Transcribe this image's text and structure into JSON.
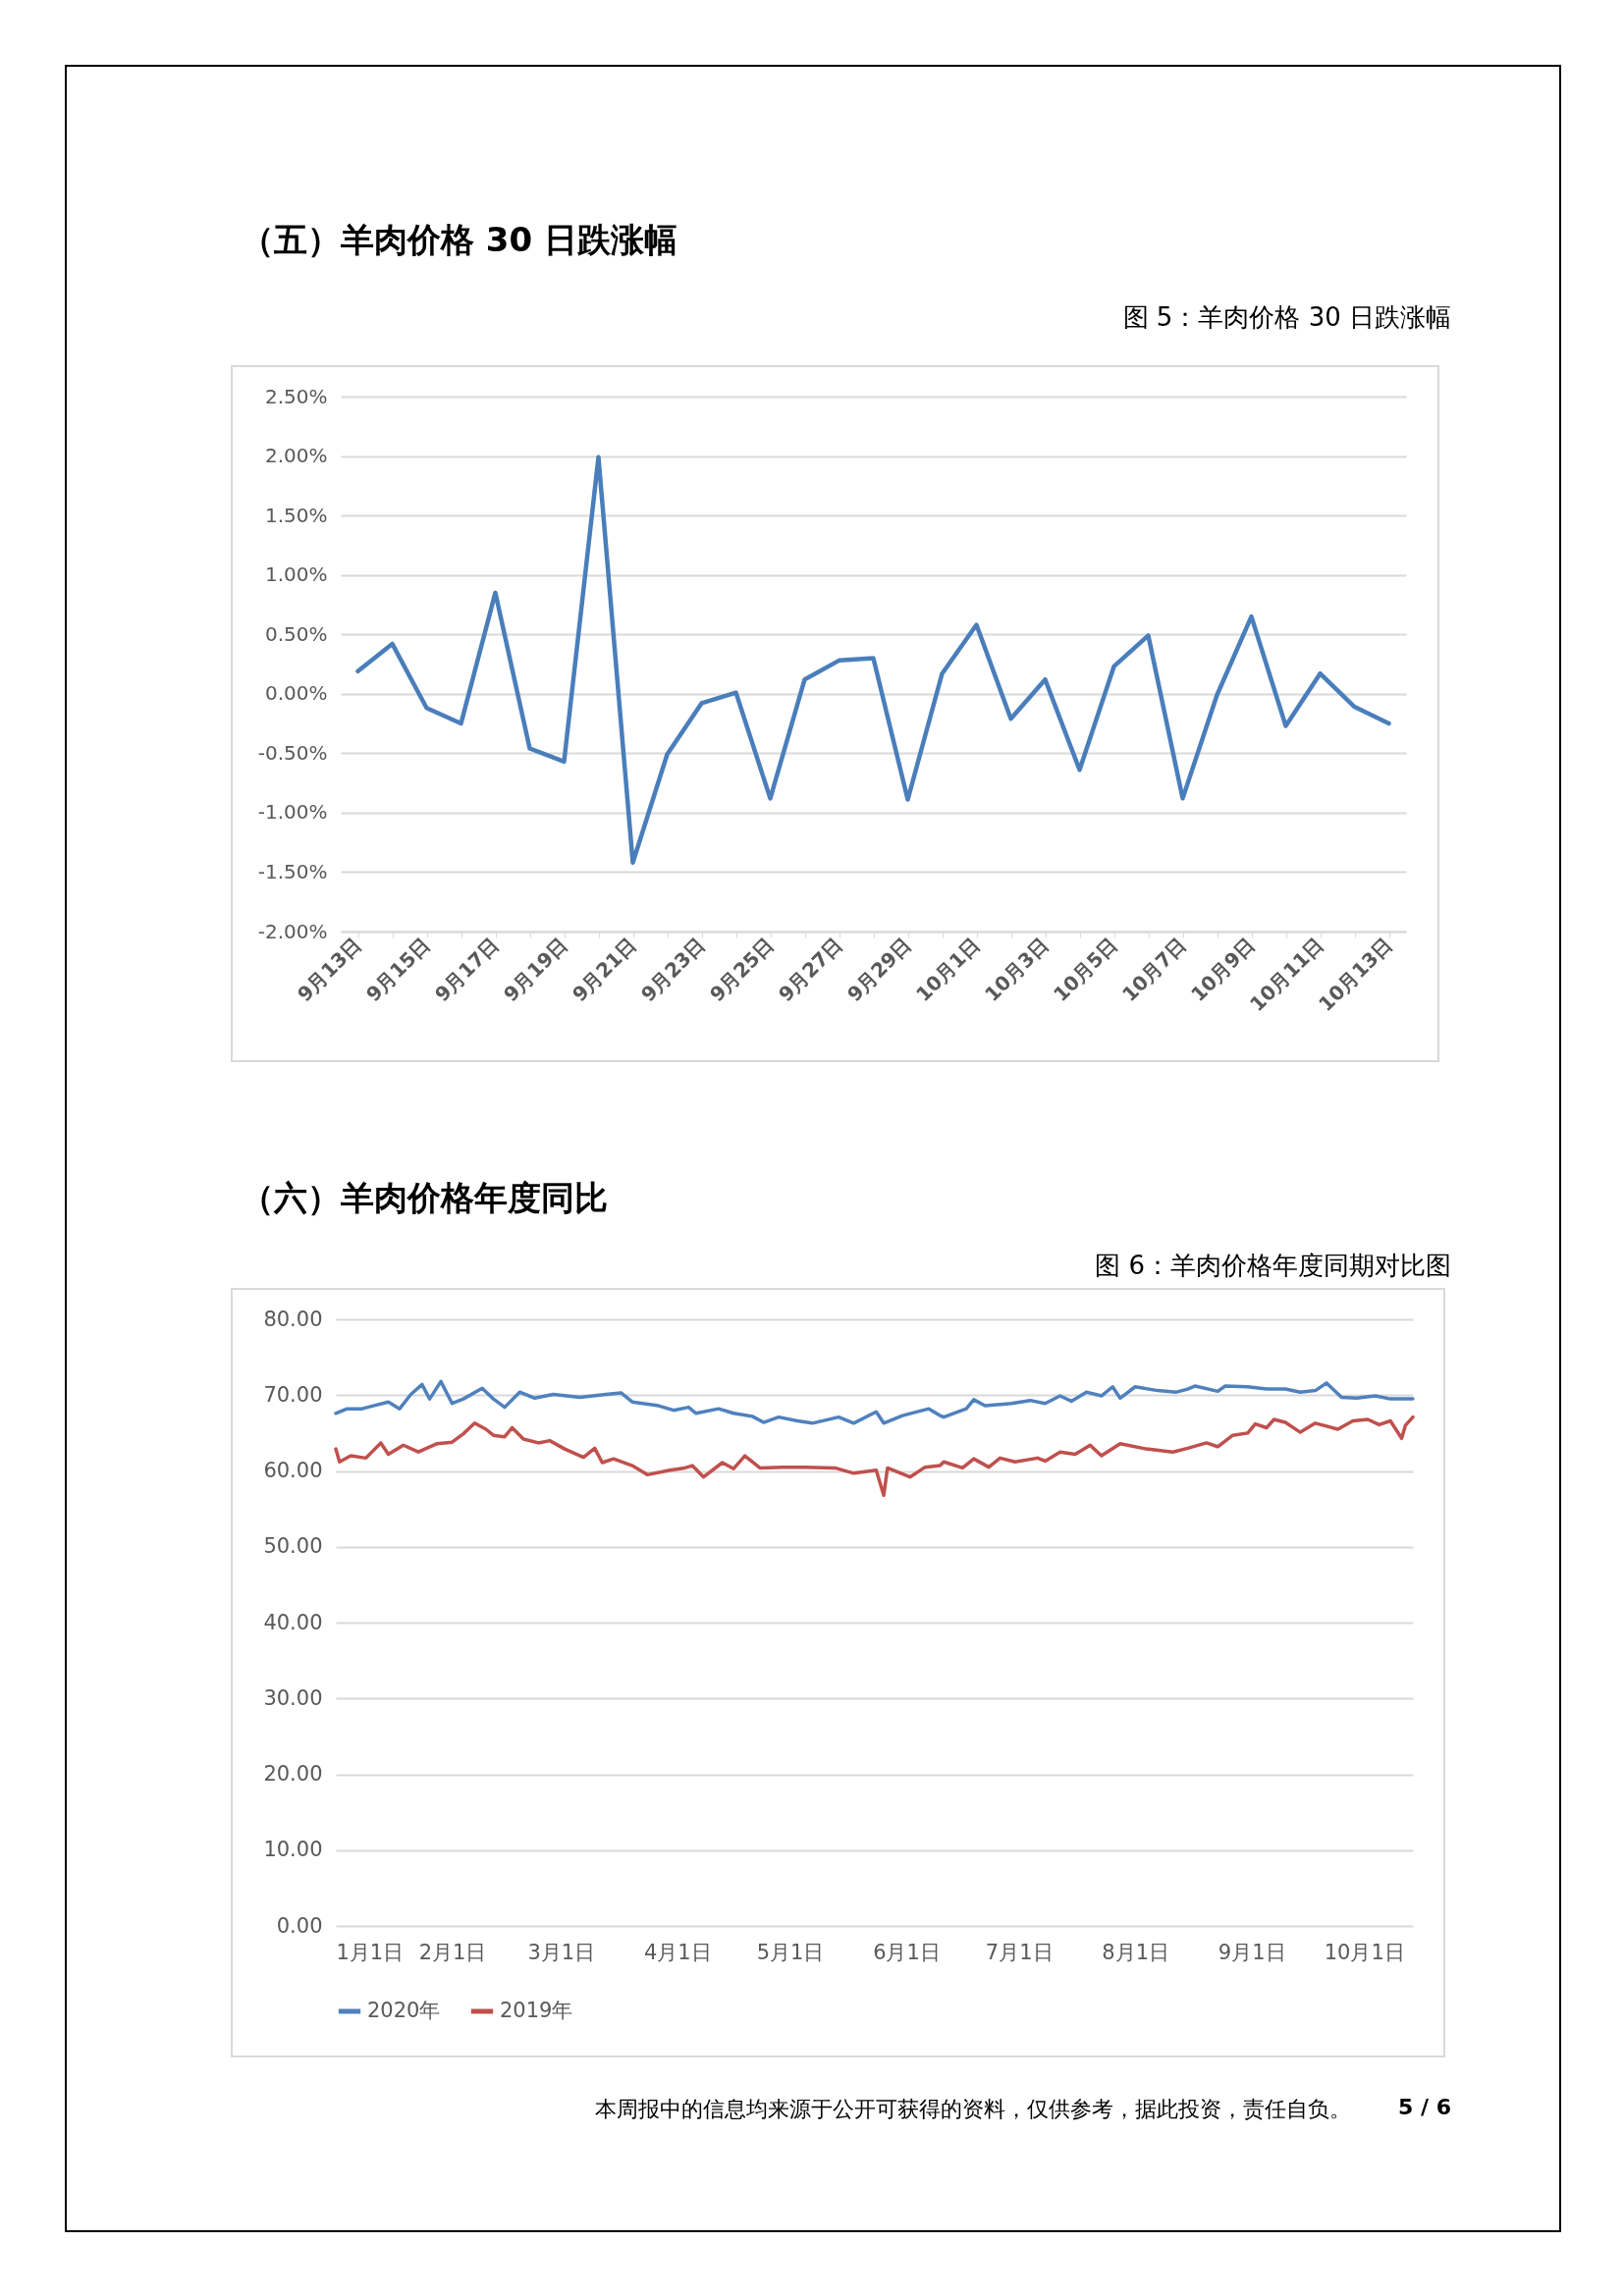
{
  "chart_data": [
    {
      "type": "line",
      "title": "（五）羊肉价格 30 日跌涨幅",
      "subtitle": "图 5：羊肉价格 30 日跌涨幅",
      "categories": [
        "9月13日",
        null,
        "9月15日",
        null,
        "9月17日",
        null,
        "9月19日",
        null,
        "9月21日",
        null,
        "9月23日",
        null,
        "9月25日",
        null,
        "9月27日",
        null,
        "9月29日",
        null,
        "10月1日",
        null,
        "10月3日",
        null,
        "10月5日",
        null,
        "10月7日",
        null,
        "10月9日",
        null,
        "10月11日",
        null,
        "10月13日"
      ],
      "values": [
        0.19,
        0.42,
        -0.12,
        -0.25,
        0.85,
        -0.46,
        -0.57,
        1.99,
        -1.42,
        -0.51,
        -0.08,
        0.01,
        -0.88,
        0.12,
        0.28,
        0.3,
        -0.89,
        0.17,
        0.58,
        -0.21,
        0.12,
        -0.64,
        0.23,
        0.49,
        -0.88,
        -0.01,
        0.65,
        -0.27,
        0.17,
        -0.11,
        -0.25
      ],
      "color": "#4a7ebb",
      "ylim": [
        -2,
        2.5
      ],
      "yticks": [
        {
          "value": -2,
          "label": "-2.00%"
        },
        {
          "value": -1.5,
          "label": "-1.50%"
        },
        {
          "value": -1,
          "label": "-1.00%"
        },
        {
          "value": -0.5,
          "label": "-0.50%"
        },
        {
          "value": 0,
          "label": "0.00%"
        },
        {
          "value": 0.5,
          "label": "0.50%"
        },
        {
          "value": 1,
          "label": "1.00%"
        },
        {
          "value": 1.5,
          "label": "1.50%"
        },
        {
          "value": 2,
          "label": "2.00%"
        },
        {
          "value": 2.5,
          "label": "2.50%"
        }
      ],
      "grid": "y"
    },
    {
      "type": "line",
      "title": "（六）羊肉价格年度同比",
      "subtitle": "图 6：羊肉价格年度同期对比图",
      "xlim": [
        "--01-01",
        "--10-14"
      ],
      "xticks": [
        {
          "value": "--01-01",
          "label": "1月1日"
        },
        {
          "value": "--02-01",
          "label": "2月1日"
        },
        {
          "value": "--03-01",
          "label": "3月1日"
        },
        {
          "value": "--04-01",
          "label": "4月1日"
        },
        {
          "value": "--05-01",
          "label": "5月1日"
        },
        {
          "value": "--06-01",
          "label": "6月1日"
        },
        {
          "value": "--07-01",
          "label": "7月1日"
        },
        {
          "value": "--08-01",
          "label": "8月1日"
        },
        {
          "value": "--09-01",
          "label": "9月1日"
        },
        {
          "value": "--10-01",
          "label": "10月1日"
        }
      ],
      "ylim": [
        0,
        80
      ],
      "yticks": [
        {
          "value": 0,
          "label": "0.00"
        },
        {
          "value": 10,
          "label": "10.00"
        },
        {
          "value": 20,
          "label": "20.00"
        },
        {
          "value": 30,
          "label": "30.00"
        },
        {
          "value": 40,
          "label": "40.00"
        },
        {
          "value": 50,
          "label": "50.00"
        },
        {
          "value": 60,
          "label": "60.00"
        },
        {
          "value": 70,
          "label": "70.00"
        },
        {
          "value": 80,
          "label": "80.00"
        }
      ],
      "series": [
        {
          "name": "2020年",
          "color": "#4f81bd",
          "x": [
            "--01-01",
            "--01-04",
            "--01-08",
            "--01-11",
            "--01-15",
            "--01-18",
            "--01-21",
            "--01-24",
            "--01-26",
            "--01-29",
            "--02-01",
            "--02-04",
            "--02-09",
            "--02-12",
            "--02-15",
            "--02-19",
            "--02-23",
            "--02-28",
            "--03-06",
            "--03-13",
            "--03-17",
            "--03-20",
            "--03-27",
            "--03-31",
            "--04-04",
            "--04-06",
            "--04-12",
            "--04-16",
            "--04-21",
            "--04-24",
            "--04-28",
            "--05-03",
            "--05-07",
            "--05-14",
            "--05-18",
            "--05-24",
            "--05-26",
            "--05-31",
            "--06-07",
            "--06-10",
            "--06-11",
            "--06-17",
            "--06-19",
            "--06-22",
            "--06-29",
            "--07-04",
            "--07-08",
            "--07-12",
            "--07-15",
            "--07-19",
            "--07-23",
            "--07-26",
            "--07-28",
            "--08-01",
            "--08-07",
            "--08-12",
            "--08-15",
            "--08-17",
            "--08-23",
            "--08-25",
            "--08-31",
            "--09-05",
            "--09-10",
            "--09-14",
            "--09-18",
            "--09-21",
            "--09-25",
            "--09-29",
            "--10-04",
            "--10-08",
            "--10-14"
          ],
          "values": [
            67.6,
            68.2,
            68.2,
            68.6,
            69.1,
            68.2,
            70.1,
            71.4,
            69.5,
            71.8,
            68.9,
            69.5,
            70.9,
            69.5,
            68.4,
            70.4,
            69.6,
            70.1,
            69.7,
            70.1,
            70.3,
            69.1,
            68.6,
            68.0,
            68.4,
            67.6,
            68.2,
            67.6,
            67.2,
            66.4,
            67.1,
            66.6,
            66.3,
            67.1,
            66.3,
            67.8,
            66.3,
            67.3,
            68.2,
            67.3,
            67.1,
            68.2,
            69.4,
            68.6,
            68.9,
            69.3,
            68.9,
            69.9,
            69.2,
            70.4,
            69.9,
            71.1,
            69.6,
            71.1,
            70.6,
            70.4,
            70.8,
            71.2,
            70.5,
            71.2,
            71.1,
            70.8,
            70.8,
            70.4,
            70.6,
            71.6,
            69.7,
            69.6,
            69.9,
            69.5,
            69.5
          ]
        },
        {
          "name": "2019年",
          "color": "#c0504d",
          "x": [
            "--01-01",
            "--01-02",
            "--01-05",
            "--01-09",
            "--01-13",
            "--01-15",
            "--01-19",
            "--01-23",
            "--01-28",
            "--02-01",
            "--02-04",
            "--02-07",
            "--02-10",
            "--02-12",
            "--02-15",
            "--02-17",
            "--02-20",
            "--02-24",
            "--02-27",
            "--03-02",
            "--03-07",
            "--03-10",
            "--03-12",
            "--03-15",
            "--03-20",
            "--03-24",
            "--03-30",
            "--04-03",
            "--04-05",
            "--04-08",
            "--04-13",
            "--04-16",
            "--04-19",
            "--04-23",
            "--04-29",
            "--05-05",
            "--05-13",
            "--05-18",
            "--05-24",
            "--05-26",
            "--05-27",
            "--06-02",
            "--06-06",
            "--06-10",
            "--06-11",
            "--06-16",
            "--06-19",
            "--06-23",
            "--06-26",
            "--06-30",
            "--07-06",
            "--07-08",
            "--07-12",
            "--07-16",
            "--07-20",
            "--07-23",
            "--07-28",
            "--08-04",
            "--08-11",
            "--08-15",
            "--08-20",
            "--08-23",
            "--08-27",
            "--08-31",
            "--09-02",
            "--09-05",
            "--09-07",
            "--09-10",
            "--09-14",
            "--09-18",
            "--09-21",
            "--09-24",
            "--09-28",
            "--10-02",
            "--10-05",
            "--10-08",
            "--10-11",
            "--10-12",
            "--10-14"
          ],
          "values": [
            62.9,
            61.2,
            62.0,
            61.7,
            63.7,
            62.2,
            63.4,
            62.5,
            63.6,
            63.8,
            64.9,
            66.3,
            65.5,
            64.7,
            64.5,
            65.7,
            64.2,
            63.7,
            64.0,
            62.9,
            61.8,
            63.0,
            61.1,
            61.6,
            60.7,
            59.5,
            60.1,
            60.4,
            60.7,
            59.2,
            61.1,
            60.3,
            62.0,
            60.4,
            60.5,
            60.5,
            60.4,
            59.7,
            60.1,
            56.8,
            60.4,
            59.2,
            60.5,
            60.7,
            61.2,
            60.4,
            61.6,
            60.5,
            61.7,
            61.2,
            61.7,
            61.3,
            62.5,
            62.2,
            63.4,
            62.0,
            63.6,
            62.9,
            62.5,
            63.0,
            63.7,
            63.2,
            64.7,
            65.0,
            66.2,
            65.7,
            66.8,
            66.4,
            65.1,
            66.3,
            65.9,
            65.5,
            66.6,
            66.8,
            66.1,
            66.6,
            64.3,
            66.0,
            67.1
          ]
        }
      ],
      "grid": "y",
      "legend": "bottom",
      "annotations": [
        "本周报中的信息均来源于公开可获得的资料，仅供参考，据此投资，责任自负。",
        "5 / 6"
      ]
    }
  ]
}
